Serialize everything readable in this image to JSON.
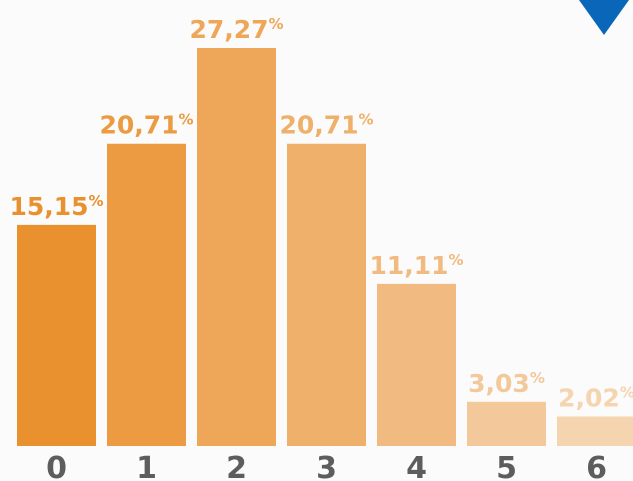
{
  "chart_data": {
    "type": "bar",
    "categories": [
      "0",
      "1",
      "2",
      "3",
      "4",
      "5",
      "6"
    ],
    "values": [
      15.15,
      20.71,
      27.27,
      20.71,
      11.11,
      3.03,
      2.02
    ],
    "value_labels": [
      "15,15",
      "20,71",
      "27,27",
      "20,71",
      "11,11",
      "3,03",
      "2,02"
    ],
    "value_suffix": "%",
    "title": "",
    "xlabel": "",
    "ylabel": "",
    "ylim": [
      0,
      30
    ],
    "grid": false,
    "legend": "none",
    "bar_colors": [
      "#e8912e",
      "#ec9b43",
      "#eea658",
      "#efb06b",
      "#f1ba80",
      "#f3c89a",
      "#f5d4b0"
    ],
    "label_colors": [
      "#e8912e",
      "#ec9b43",
      "#eea658",
      "#efb06b",
      "#f1ba80",
      "#f3c89a",
      "#f5d4b0"
    ]
  },
  "corner_marker": {
    "icon": "triangle-down-icon",
    "color": "#0a66b8"
  }
}
